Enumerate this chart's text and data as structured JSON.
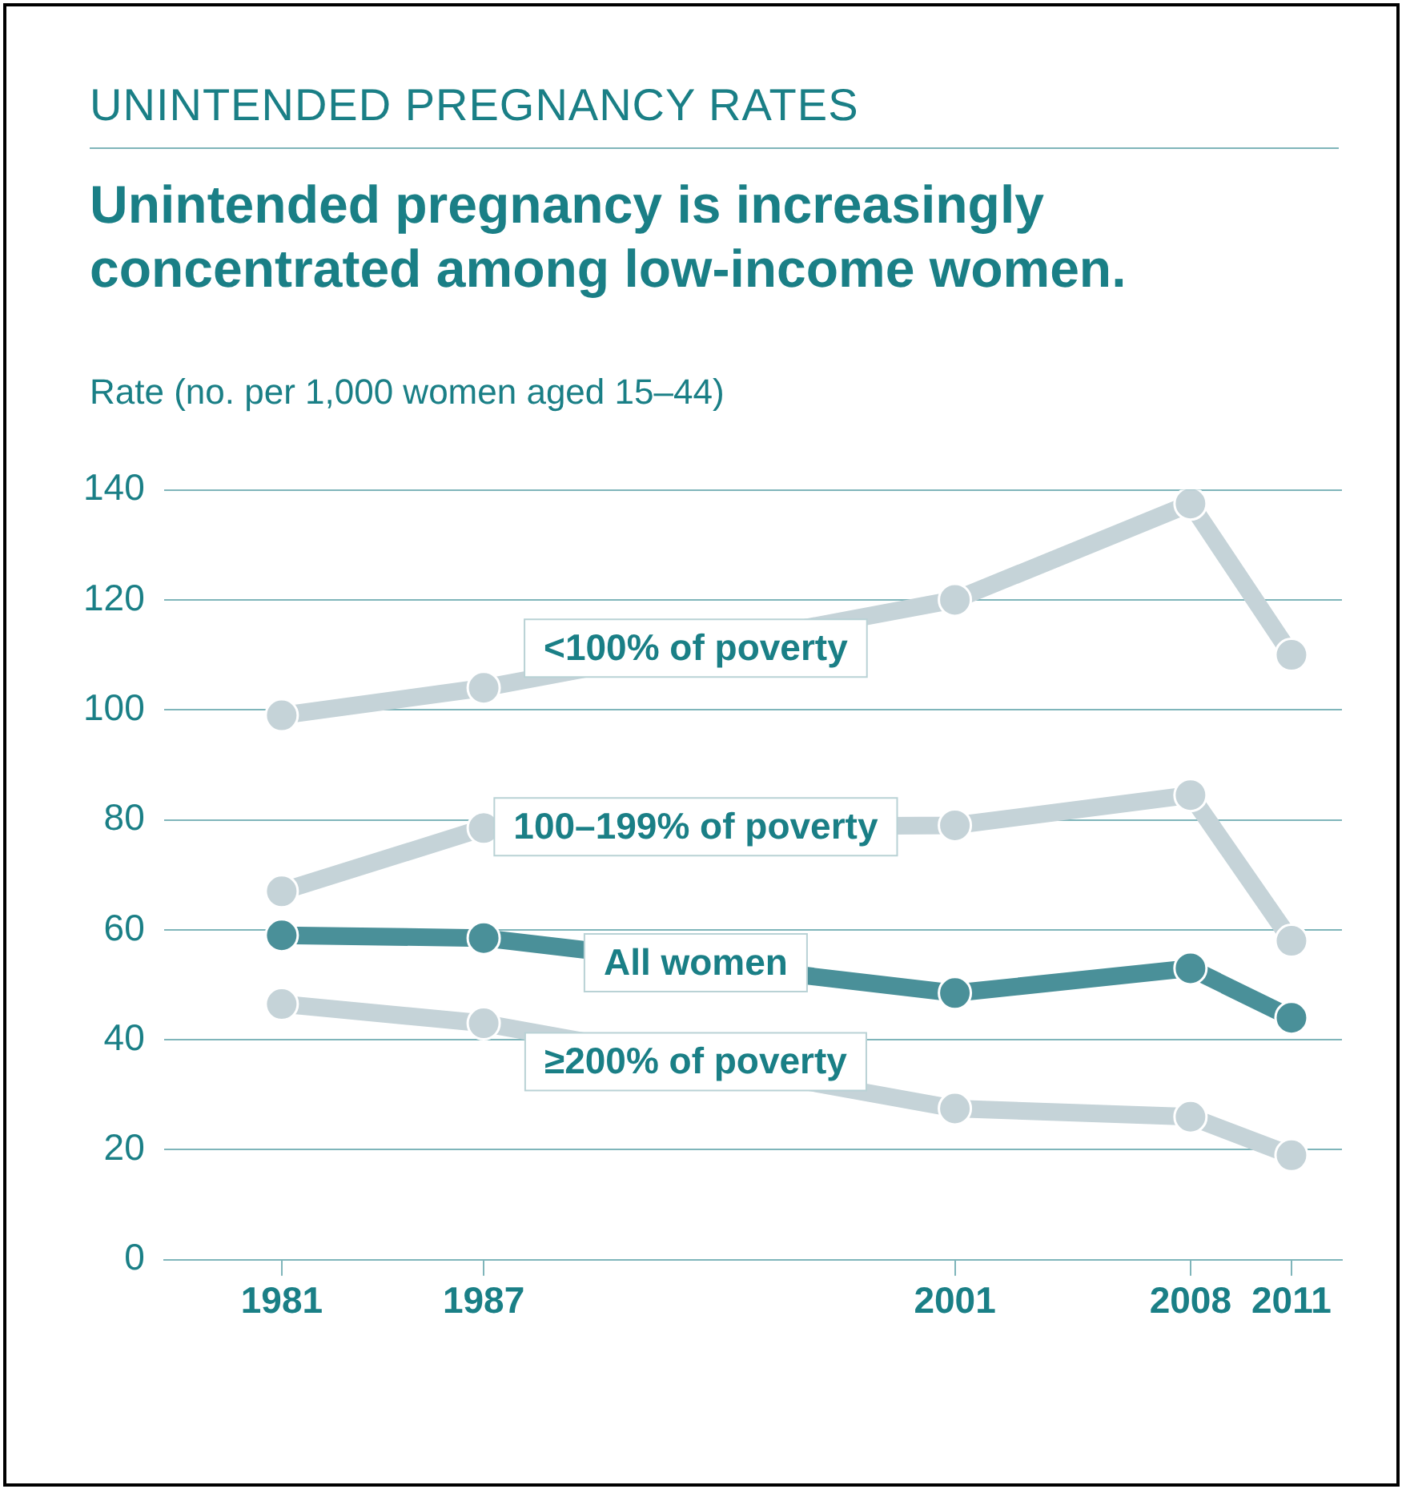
{
  "chart_data": {
    "type": "line",
    "subtitle": "UNINTENDED PREGNANCY RATES",
    "title": "Unintended pregnancy is increasingly concentrated among low-income women.",
    "ylabel": "Rate (no. per 1,000 women aged 15–44)",
    "x": [
      1981,
      1987,
      2001,
      2008,
      2011
    ],
    "xlim": [
      1977.5,
      2012.5
    ],
    "xticks": [
      1981,
      1987,
      2001,
      2008,
      2011
    ],
    "ylim": [
      0,
      140
    ],
    "yticks": [
      0,
      20,
      40,
      60,
      80,
      100,
      120,
      140
    ],
    "grid": "y",
    "legend": false,
    "marker": "circle",
    "line_style": "solid",
    "series": [
      {
        "name": "<100% of poverty",
        "color": "#c5d3d8",
        "values": [
          99,
          104,
          120,
          137.5,
          110
        ]
      },
      {
        "name": "100–199% of poverty",
        "color": "#c5d3d8",
        "values": [
          67,
          78.5,
          79,
          84.5,
          58
        ]
      },
      {
        "name": "All women",
        "color": "#4a9099",
        "values": [
          59,
          58.5,
          48.5,
          53,
          44
        ]
      },
      {
        "name": "≥200% of poverty",
        "color": "#c5d3d8",
        "values": [
          46.5,
          43,
          27.5,
          26,
          19
        ]
      }
    ]
  }
}
